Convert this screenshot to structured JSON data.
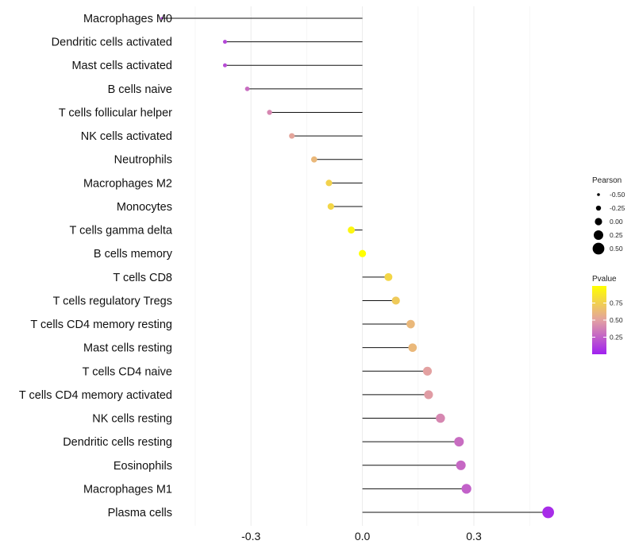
{
  "chart_data": {
    "type": "lollipop",
    "title": "",
    "xlabel": "",
    "ylabel": "",
    "xlim": [
      -0.45,
      0.55
    ],
    "x_ticks": [
      -0.3,
      0.0,
      0.3
    ],
    "x_tick_labels": [
      "-0.3",
      "0.0",
      "0.3"
    ],
    "grid": true,
    "color_low": "#A020F0",
    "color_mid": "#E3A1A1",
    "color_high": "#FFFF00",
    "categories": [
      "Macrophages M0",
      "Dendritic cells activated",
      "Mast cells activated",
      "B cells naive",
      "T cells follicular helper",
      "NK cells activated",
      "Neutrophils",
      "Macrophages M2",
      "Monocytes",
      "T cells gamma delta",
      "B cells memory",
      "T cells CD8",
      "T cells regulatory  Tregs ",
      "T cells CD4 memory resting",
      "Mast cells resting",
      "T cells CD4 naive",
      "T cells CD4 memory activated",
      "NK cells resting",
      "Dendritic cells resting",
      "Eosinophils",
      "Macrophages M1",
      "Plasma cells"
    ],
    "pearson": [
      -0.54,
      -0.37,
      -0.37,
      -0.31,
      -0.25,
      -0.19,
      -0.13,
      -0.09,
      -0.085,
      -0.03,
      0.0,
      0.07,
      0.09,
      0.13,
      0.135,
      0.175,
      0.178,
      0.21,
      0.26,
      0.265,
      0.28,
      0.5
    ],
    "pvalue": [
      0.1,
      0.15,
      0.17,
      0.3,
      0.4,
      0.52,
      0.62,
      0.76,
      0.78,
      0.95,
      1.0,
      0.78,
      0.72,
      0.62,
      0.62,
      0.5,
      0.48,
      0.4,
      0.3,
      0.28,
      0.25,
      0.05
    ],
    "legend": {
      "pearson": {
        "title": "Pearson",
        "entries": [
          "-0.50",
          "-0.25",
          "0.00",
          "0.25",
          "0.50"
        ],
        "values": [
          -0.5,
          -0.25,
          0.0,
          0.25,
          0.5
        ]
      },
      "pvalue": {
        "title": "Pvalue",
        "ticks": [
          "0.75",
          "0.50",
          "0.25"
        ],
        "tick_values": [
          0.75,
          0.5,
          0.25
        ],
        "range": [
          0.0,
          1.0
        ]
      }
    }
  }
}
